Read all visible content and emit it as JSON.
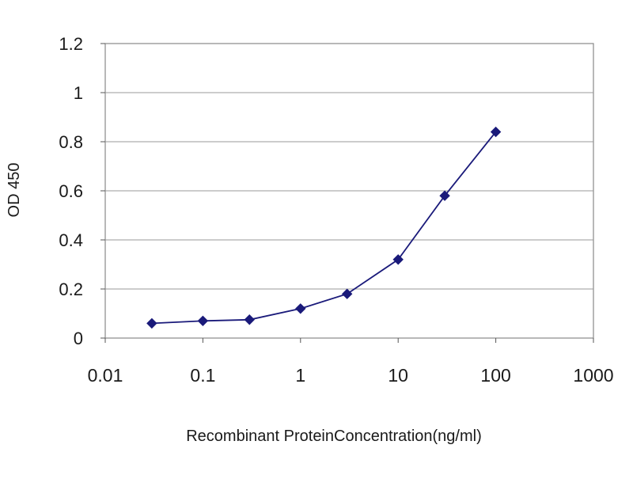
{
  "chart_data": {
    "type": "line",
    "xscale": "log",
    "xlim": [
      0.01,
      1000
    ],
    "ylim": [
      0,
      1.2
    ],
    "xticks": [
      0.01,
      0.1,
      1,
      10,
      100,
      1000
    ],
    "xtick_labels": [
      "0.01",
      "0.1",
      "1",
      "10",
      "100",
      "1000"
    ],
    "yticks": [
      0,
      0.2,
      0.4,
      0.6,
      0.8,
      1,
      1.2
    ],
    "ytick_labels": [
      "0",
      "0.2",
      "0.4",
      "0.6",
      "0.8",
      "1",
      "1.2"
    ],
    "xlabel": "Recombinant ProteinConcentration(ng/ml)",
    "ylabel": "OD 450",
    "grid": "horizontal",
    "legend": "none",
    "series": [
      {
        "x": [
          0.03,
          0.1,
          0.3,
          1,
          3,
          10,
          30,
          100
        ],
        "y": [
          0.06,
          0.07,
          0.075,
          0.12,
          0.18,
          0.32,
          0.58,
          0.84
        ],
        "color": "#1a1a7a",
        "marker": "diamond"
      }
    ]
  }
}
